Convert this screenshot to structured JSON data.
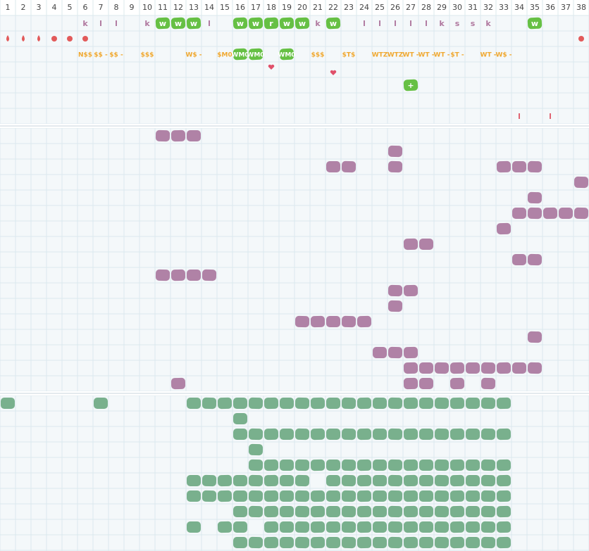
{
  "header": {
    "columns": [
      1,
      2,
      3,
      4,
      5,
      6,
      7,
      8,
      9,
      10,
      11,
      12,
      13,
      14,
      15,
      16,
      17,
      18,
      19,
      20,
      21,
      22,
      23,
      24,
      25,
      26,
      27,
      28,
      29,
      30,
      31,
      32,
      33,
      34,
      35,
      36,
      37,
      38
    ]
  },
  "text_rows": [
    {
      "color": "#b0789f",
      "cells": [
        {
          "col": 6,
          "text": "k"
        },
        {
          "col": 7,
          "text": "l"
        },
        {
          "col": 8,
          "text": "l"
        },
        {
          "col": 10,
          "text": "k"
        },
        {
          "col": 11,
          "text": "w",
          "badge": true
        },
        {
          "col": 12,
          "text": "w",
          "badge": true
        },
        {
          "col": 13,
          "text": "w",
          "badge": true
        },
        {
          "col": 14,
          "text": "l"
        },
        {
          "col": 16,
          "text": "w",
          "badge": true
        },
        {
          "col": 17,
          "text": "w",
          "badge": true
        },
        {
          "col": 18,
          "text": "r",
          "badge": true
        },
        {
          "col": 19,
          "text": "w",
          "badge": true
        },
        {
          "col": 20,
          "text": "w",
          "badge": true
        },
        {
          "col": 21,
          "text": "k"
        },
        {
          "col": 22,
          "text": "w",
          "badge": true
        },
        {
          "col": 24,
          "text": "l"
        },
        {
          "col": 25,
          "text": "l"
        },
        {
          "col": 26,
          "text": "l"
        },
        {
          "col": 27,
          "text": "l"
        },
        {
          "col": 28,
          "text": "l"
        },
        {
          "col": 29,
          "text": "k"
        },
        {
          "col": 30,
          "text": "s"
        },
        {
          "col": 31,
          "text": "s"
        },
        {
          "col": 32,
          "text": "k"
        },
        {
          "col": 35,
          "text": "w",
          "badge": true
        }
      ]
    },
    {
      "color": "#f0a830",
      "cells": [
        {
          "col": 6,
          "text": "N$$"
        },
        {
          "col": 7,
          "text": "$$ -"
        },
        {
          "col": 8,
          "text": "$$ -"
        },
        {
          "col": 10,
          "text": "$$$"
        },
        {
          "col": 13,
          "text": "W$ -"
        },
        {
          "col": 15,
          "text": "$M0"
        },
        {
          "col": 16,
          "text": "WM0",
          "badge": true
        },
        {
          "col": 17,
          "text": "WM0",
          "badge": true
        },
        {
          "col": 19,
          "text": "WM0",
          "badge": true
        },
        {
          "col": 21,
          "text": "$$$"
        },
        {
          "col": 23,
          "text": "$T$"
        },
        {
          "col": 25,
          "text": "WTZ"
        },
        {
          "col": 26,
          "text": "WTZ"
        },
        {
          "col": 27,
          "text": "WT -"
        },
        {
          "col": 28,
          "text": "WT -"
        },
        {
          "col": 29,
          "text": "WT -"
        },
        {
          "col": 30,
          "text": "$T -"
        },
        {
          "col": 32,
          "text": "WT -"
        },
        {
          "col": 33,
          "text": "W$ -"
        }
      ]
    },
    {
      "color": "#ffffff",
      "cells": [
        {
          "col": 27,
          "text": "+",
          "badge": true
        }
      ]
    },
    {
      "color": "#e0606e",
      "cells": [
        {
          "col": 34,
          "text": "l"
        },
        {
          "col": 36,
          "text": "l"
        }
      ]
    }
  ]
}
